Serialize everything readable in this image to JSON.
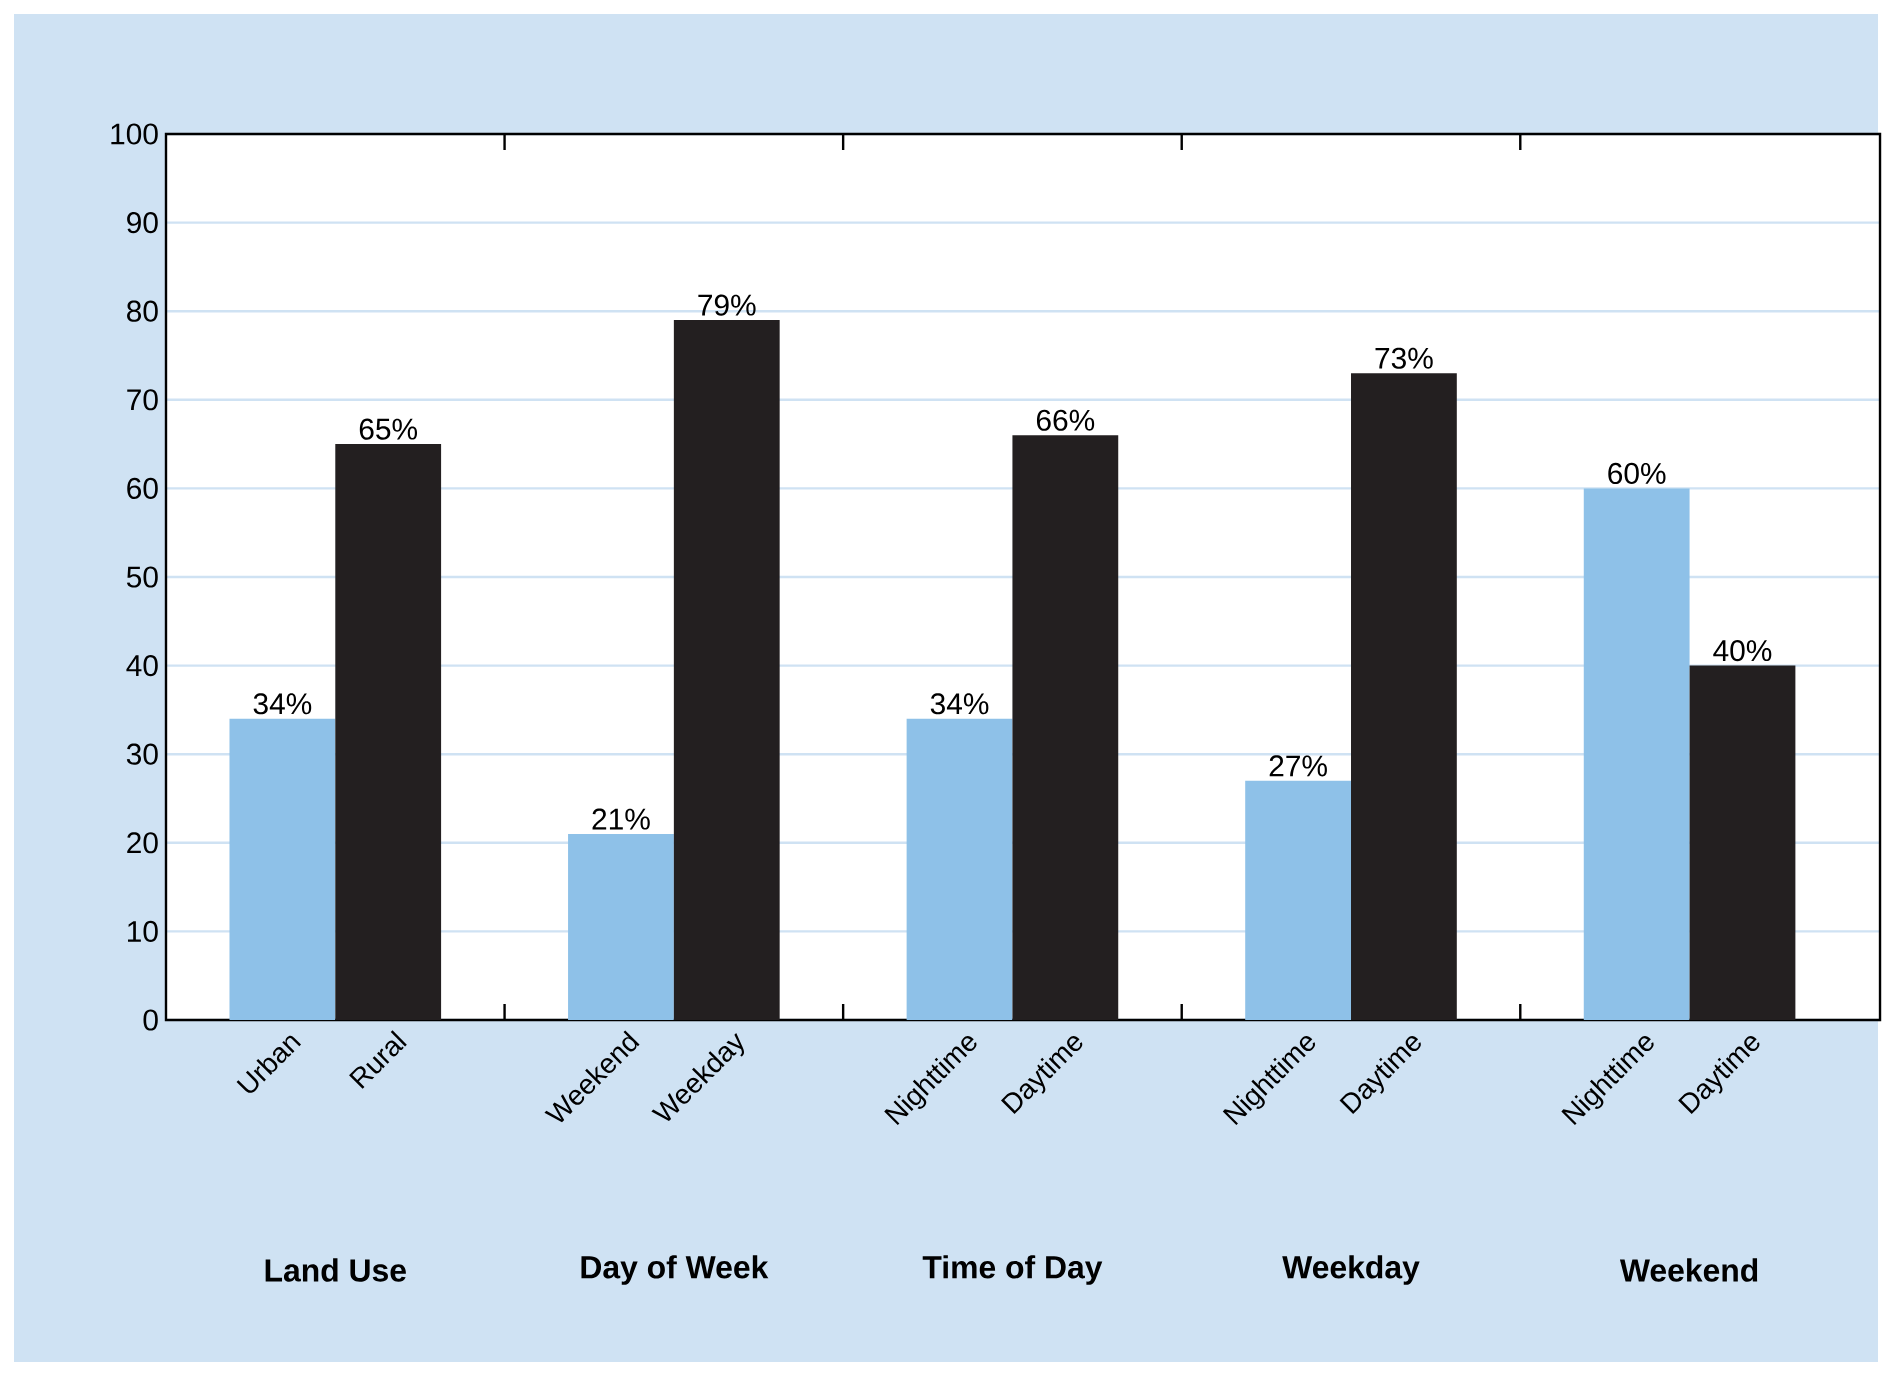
{
  "chart_data": {
    "type": "bar",
    "categories": [
      "Urban",
      "Rural",
      "Weekend",
      "Weekday",
      "Nighttime",
      "Daytime",
      "Nighttime",
      "Daytime",
      "Nighttime",
      "Daytime"
    ],
    "values": [
      34,
      65,
      21,
      79,
      34,
      66,
      27,
      73,
      60,
      40
    ],
    "colors": [
      "#8ec1e8",
      "#231f20",
      "#8ec1e8",
      "#231f20",
      "#8ec1e8",
      "#231f20",
      "#8ec1e8",
      "#231f20",
      "#8ec1e8",
      "#231f20"
    ],
    "value_labels": [
      "34%",
      "65%",
      "21%",
      "79%",
      "34%",
      "66%",
      "27%",
      "73%",
      "60%",
      "40%"
    ],
    "annotations": [
      "Land Use",
      "Day of Week",
      "Time of Day",
      "Weekday",
      "Weekend"
    ],
    "ylim": [
      0,
      100
    ],
    "yticks": [
      0,
      10,
      20,
      30,
      40,
      50,
      60,
      70,
      80,
      90,
      100
    ],
    "grid": "y"
  }
}
